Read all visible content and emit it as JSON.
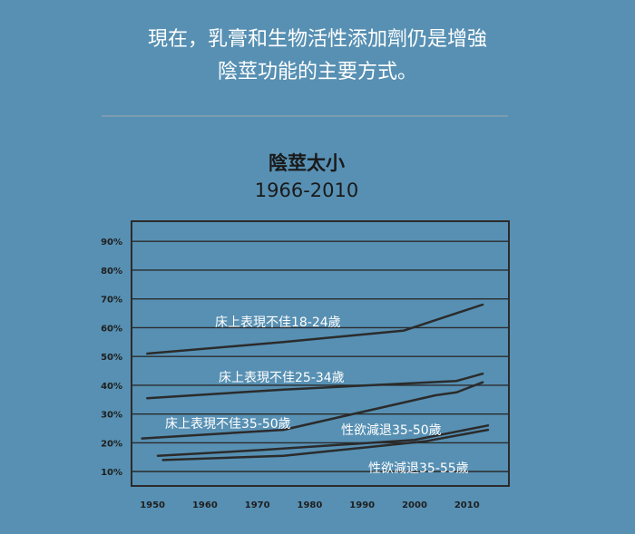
{
  "intro": {
    "line1": "現在，乳膏和生物活性添加劑仍是增強",
    "line2": "陰莖功能的主要方式。"
  },
  "chart_data": {
    "type": "line",
    "title": "陰莖太小",
    "subtitle": "1966-2010",
    "xlabel": "",
    "ylabel": "",
    "xlim": [
      1946,
      2018
    ],
    "ylim": [
      5,
      97
    ],
    "x_ticks": [
      "1950",
      "1960",
      "1970",
      "1980",
      "1990",
      "2000",
      "2010"
    ],
    "y_ticks": [
      "10%",
      "20%",
      "30%",
      "40%",
      "50%",
      "60%",
      "70%",
      "80%",
      "90%"
    ],
    "grid": "horizontal",
    "series": [
      {
        "name": "床上表現不佳18-24歲",
        "x": [
          1949,
          1975,
          1998,
          2013
        ],
        "y": [
          51,
          55,
          59,
          68
        ]
      },
      {
        "name": "床上表現不佳25-34歲",
        "x": [
          1949,
          1975,
          2008,
          2013
        ],
        "y": [
          35.5,
          38.5,
          41.5,
          44
        ]
      },
      {
        "name": "床上表現不佳35-50歲",
        "x": [
          1948,
          1975,
          2004,
          2008,
          2013
        ],
        "y": [
          21.5,
          24.5,
          36.5,
          37.5,
          41
        ]
      },
      {
        "name": "性欲減退35-50歲",
        "x": [
          1951,
          1971,
          2000,
          2014
        ],
        "y": [
          15.5,
          17.5,
          21,
          26
        ]
      },
      {
        "name": "性欲減退35-55歲",
        "x": [
          1952,
          1975,
          2002,
          2014
        ],
        "y": [
          14,
          15.5,
          20.5,
          24.5
        ]
      }
    ]
  },
  "colors": {
    "background": "#5790b3",
    "line": "#2b2b2b",
    "label": "#ffffff",
    "title": "#1a1a1a"
  }
}
